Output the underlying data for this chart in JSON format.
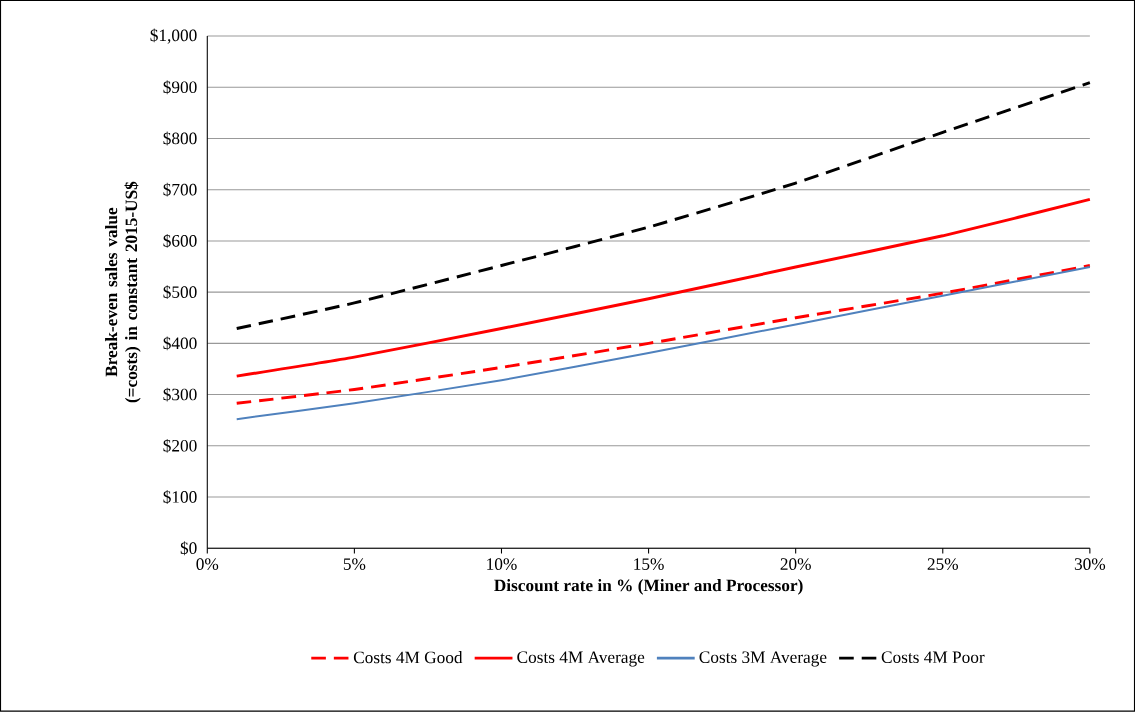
{
  "chart_data": {
    "type": "line",
    "xlabel": "Discount rate in % (Miner and Processor)",
    "ylabel": "Break-even sales value (=costs) in constant 2015-US$",
    "x": [
      1,
      5,
      10,
      15,
      20,
      25,
      30
    ],
    "series": [
      {
        "name": "Costs 4M Good",
        "color": "#ff0000",
        "line_style": "dashed",
        "values": [
          283,
          310,
          353,
          400,
          450,
          498,
          552
        ]
      },
      {
        "name": "Costs 4M Average",
        "color": "#ff0000",
        "line_style": "solid",
        "values": [
          336,
          373,
          429,
          487,
          549,
          610,
          681
        ]
      },
      {
        "name": "Costs 3M Average",
        "color": "#4f81bd",
        "line_style": "solid",
        "values": [
          252,
          283,
          328,
          381,
          437,
          493,
          549
        ]
      },
      {
        "name": "Costs 4M Poor",
        "color": "#000000",
        "line_style": "dashed",
        "values": [
          429,
          479,
          552,
          627,
          713,
          812,
          909
        ]
      }
    ],
    "xlim": [
      0,
      30
    ],
    "ylim": [
      0,
      1000
    ],
    "xticks": [
      {
        "value": 0,
        "label": "0%"
      },
      {
        "value": 5,
        "label": "5%"
      },
      {
        "value": 10,
        "label": "10%"
      },
      {
        "value": 15,
        "label": "15%"
      },
      {
        "value": 20,
        "label": "20%"
      },
      {
        "value": 25,
        "label": "25%"
      },
      {
        "value": 30,
        "label": "30%"
      }
    ],
    "yticks": [
      {
        "value": 0,
        "label": "$0"
      },
      {
        "value": 100,
        "label": "$100"
      },
      {
        "value": 200,
        "label": "$200"
      },
      {
        "value": 300,
        "label": "$300"
      },
      {
        "value": 400,
        "label": "$400"
      },
      {
        "value": 500,
        "label": "$500"
      },
      {
        "value": 600,
        "label": "$600"
      },
      {
        "value": 700,
        "label": "$700"
      },
      {
        "value": 800,
        "label": "$800"
      },
      {
        "value": 900,
        "label": "$900"
      },
      {
        "value": 1000,
        "label": "$1,000"
      }
    ],
    "grid": "y",
    "legend": "bottom",
    "marker": "none"
  }
}
